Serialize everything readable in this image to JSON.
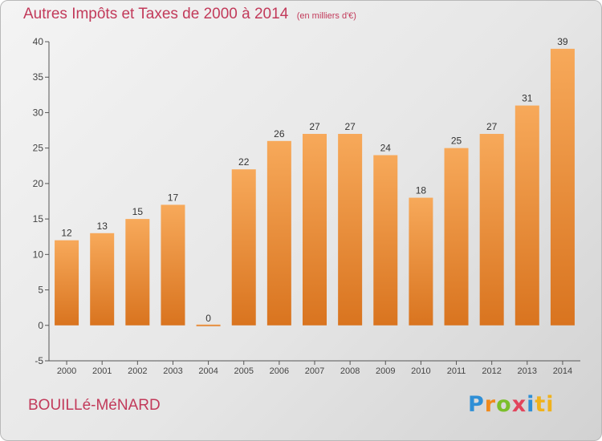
{
  "title": "Autres Impôts et Taxes de 2000 à 2014",
  "unit_note": "(en milliers d'€)",
  "commune": "BOUILLé-MéNARD",
  "brand": [
    "P",
    "r",
    "o",
    "x",
    "i",
    "ti"
  ],
  "colors": {
    "title": "#c23a5a",
    "bar_light": "#f7a95a",
    "bar_dark": "#d9741f",
    "axis": "#555555"
  },
  "chart_data": {
    "type": "bar",
    "categories": [
      "2000",
      "2001",
      "2002",
      "2003",
      "2004",
      "2005",
      "2006",
      "2007",
      "2008",
      "2009",
      "2010",
      "2011",
      "2012",
      "2013",
      "2014"
    ],
    "values": [
      12,
      13,
      15,
      17,
      0,
      22,
      26,
      27,
      27,
      24,
      18,
      25,
      27,
      31,
      39
    ],
    "ylim": [
      -5,
      40
    ],
    "yticks": [
      -5,
      0,
      5,
      10,
      15,
      20,
      25,
      30,
      35,
      40
    ],
    "grid": false,
    "legend": "none"
  }
}
